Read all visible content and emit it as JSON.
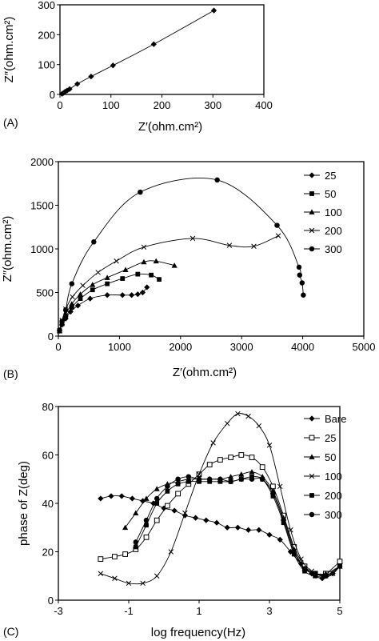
{
  "chart_data": [
    {
      "panel": "(A)",
      "type": "line",
      "xlabel": "Z′(ohm.cm²)",
      "ylabel": "Z″(ohm.cm²)",
      "xlim": [
        0,
        400
      ],
      "ylim": [
        0,
        300
      ],
      "xticks": [
        0,
        100,
        200,
        300,
        400
      ],
      "yticks": [
        0,
        100,
        200,
        300
      ],
      "grid": false,
      "series": [
        {
          "marker": "diamond",
          "x": [
            4,
            7,
            10,
            14,
            19,
            34,
            61,
            104,
            184,
            302
          ],
          "y": [
            2,
            5,
            9,
            13,
            18,
            35,
            60,
            97,
            168,
            281
          ]
        }
      ]
    },
    {
      "panel": "(B)",
      "type": "line",
      "xlabel": "Z′(ohm.cm²)",
      "ylabel": "Z″(ohm.cm²)",
      "xlim": [
        0,
        5000
      ],
      "ylim": [
        0,
        2000
      ],
      "xticks": [
        0,
        1000,
        2000,
        3000,
        4000,
        5000
      ],
      "yticks": [
        0,
        500,
        1000,
        1500,
        2000
      ],
      "grid": false,
      "legend": "right",
      "series": [
        {
          "name": "25",
          "marker": "diamond",
          "x": [
            20,
            60,
            120,
            200,
            320,
            520,
            800,
            1050,
            1200,
            1300,
            1380,
            1450
          ],
          "y": [
            60,
            130,
            200,
            280,
            350,
            430,
            470,
            470,
            470,
            480,
            500,
            560
          ]
        },
        {
          "name": "50",
          "marker": "square",
          "x": [
            20,
            60,
            120,
            220,
            360,
            560,
            800,
            1050,
            1300,
            1520,
            1650
          ],
          "y": [
            60,
            140,
            220,
            330,
            430,
            530,
            600,
            660,
            710,
            700,
            650
          ]
        },
        {
          "name": "100",
          "marker": "triangle",
          "x": [
            20,
            60,
            120,
            220,
            360,
            560,
            800,
            1100,
            1400,
            1600,
            1900
          ],
          "y": [
            60,
            150,
            250,
            370,
            480,
            590,
            670,
            760,
            850,
            860,
            810
          ]
        },
        {
          "name": "200",
          "marker": "x",
          "x": [
            20,
            60,
            120,
            230,
            400,
            650,
            950,
            1400,
            2200,
            2800,
            3200,
            3600
          ],
          "y": [
            60,
            180,
            310,
            450,
            580,
            730,
            860,
            1020,
            1120,
            1040,
            1030,
            1150
          ]
        },
        {
          "name": "300",
          "marker": "circle",
          "x": [
            20,
            60,
            120,
            220,
            580,
            1340,
            2600,
            3580,
            3940,
            3950,
            3990,
            4010
          ],
          "y": [
            70,
            170,
            300,
            600,
            1080,
            1650,
            1790,
            1270,
            790,
            700,
            610,
            470
          ]
        }
      ]
    },
    {
      "panel": "(C)",
      "type": "line",
      "xlabel": "log frequency(Hz)",
      "ylabel": "phase of Z(deg)",
      "xlim": [
        -3,
        5
      ],
      "ylim": [
        0,
        80
      ],
      "xticks": [
        -3,
        -1,
        1,
        3,
        5
      ],
      "yticks": [
        0,
        20,
        40,
        60,
        80
      ],
      "grid": false,
      "legend": "right",
      "series": [
        {
          "name": "Bare",
          "marker": "diamond",
          "x": [
            -1.8,
            -1.5,
            -1.2,
            -0.9,
            -0.6,
            -0.3,
            0,
            0.3,
            0.6,
            0.9,
            1.2,
            1.5,
            1.8,
            2.1,
            2.4,
            2.7,
            3.0,
            3.3,
            3.6,
            3.9,
            4.2,
            4.5,
            4.8,
            5.0
          ],
          "y": [
            42,
            43,
            43,
            42,
            41,
            40,
            38,
            37,
            35,
            34,
            33,
            32,
            30,
            30,
            29,
            29,
            27,
            25,
            20,
            15,
            11,
            9,
            11,
            15
          ]
        },
        {
          "name": "25",
          "marker": "square-open",
          "x": [
            -1.8,
            -1.4,
            -1.1,
            -0.8,
            -0.5,
            -0.2,
            0.1,
            0.4,
            0.7,
            1.0,
            1.3,
            1.6,
            1.9,
            2.2,
            2.5,
            2.8,
            3.1,
            3.4,
            3.7,
            4.0,
            4.3,
            4.6,
            5.0
          ],
          "y": [
            17,
            18,
            19,
            21,
            26,
            33,
            39,
            44,
            48,
            52,
            56,
            58,
            59,
            60,
            59,
            55,
            47,
            35,
            22,
            14,
            11,
            11,
            16
          ]
        },
        {
          "name": "50",
          "marker": "triangle",
          "x": [
            -1.1,
            -0.8,
            -0.5,
            -0.2,
            0.1,
            0.4,
            0.7,
            1.0,
            1.3,
            1.6,
            1.9,
            2.2,
            2.5,
            2.8,
            3.1,
            3.4,
            3.7,
            4.0,
            4.3,
            4.6,
            5.0
          ],
          "y": [
            30,
            36,
            42,
            46,
            48,
            49,
            50,
            50,
            50,
            50,
            51,
            52,
            53,
            51,
            45,
            34,
            21,
            13,
            11,
            11,
            14
          ]
        },
        {
          "name": "100",
          "marker": "x",
          "x": [
            -1.8,
            -1.4,
            -1.0,
            -0.6,
            -0.2,
            0.2,
            0.6,
            1.0,
            1.4,
            1.8,
            2.1,
            2.4,
            2.7,
            3.0,
            3.3,
            3.6,
            3.9,
            4.2,
            4.5,
            4.8,
            5.0
          ],
          "y": [
            11,
            9,
            7,
            7,
            10,
            20,
            36,
            52,
            65,
            73,
            77,
            76,
            72,
            64,
            47,
            29,
            17,
            12,
            10,
            11,
            14
          ]
        },
        {
          "name": "200",
          "marker": "square",
          "x": [
            -0.8,
            -0.5,
            -0.2,
            0.1,
            0.4,
            0.7,
            1.0,
            1.3,
            1.6,
            1.9,
            2.2,
            2.5,
            2.8,
            3.1,
            3.4,
            3.7,
            4.0,
            4.3,
            4.6,
            5.0
          ],
          "y": [
            22,
            31,
            40,
            45,
            48,
            49,
            49,
            49,
            49,
            49,
            50,
            51,
            50,
            43,
            32,
            19,
            12,
            10,
            10,
            14
          ]
        },
        {
          "name": "300",
          "marker": "circle",
          "x": [
            -0.8,
            -0.5,
            -0.2,
            0.1,
            0.4,
            0.7,
            1.0,
            1.3,
            1.6,
            1.9,
            2.2,
            2.5,
            2.8,
            3.1,
            3.4,
            3.7,
            4.0,
            4.3,
            4.6,
            5.0
          ],
          "y": [
            24,
            33,
            42,
            47,
            50,
            51,
            50,
            50,
            50,
            49,
            50,
            50,
            50,
            44,
            33,
            20,
            13,
            11,
            10,
            14
          ]
        }
      ]
    }
  ]
}
